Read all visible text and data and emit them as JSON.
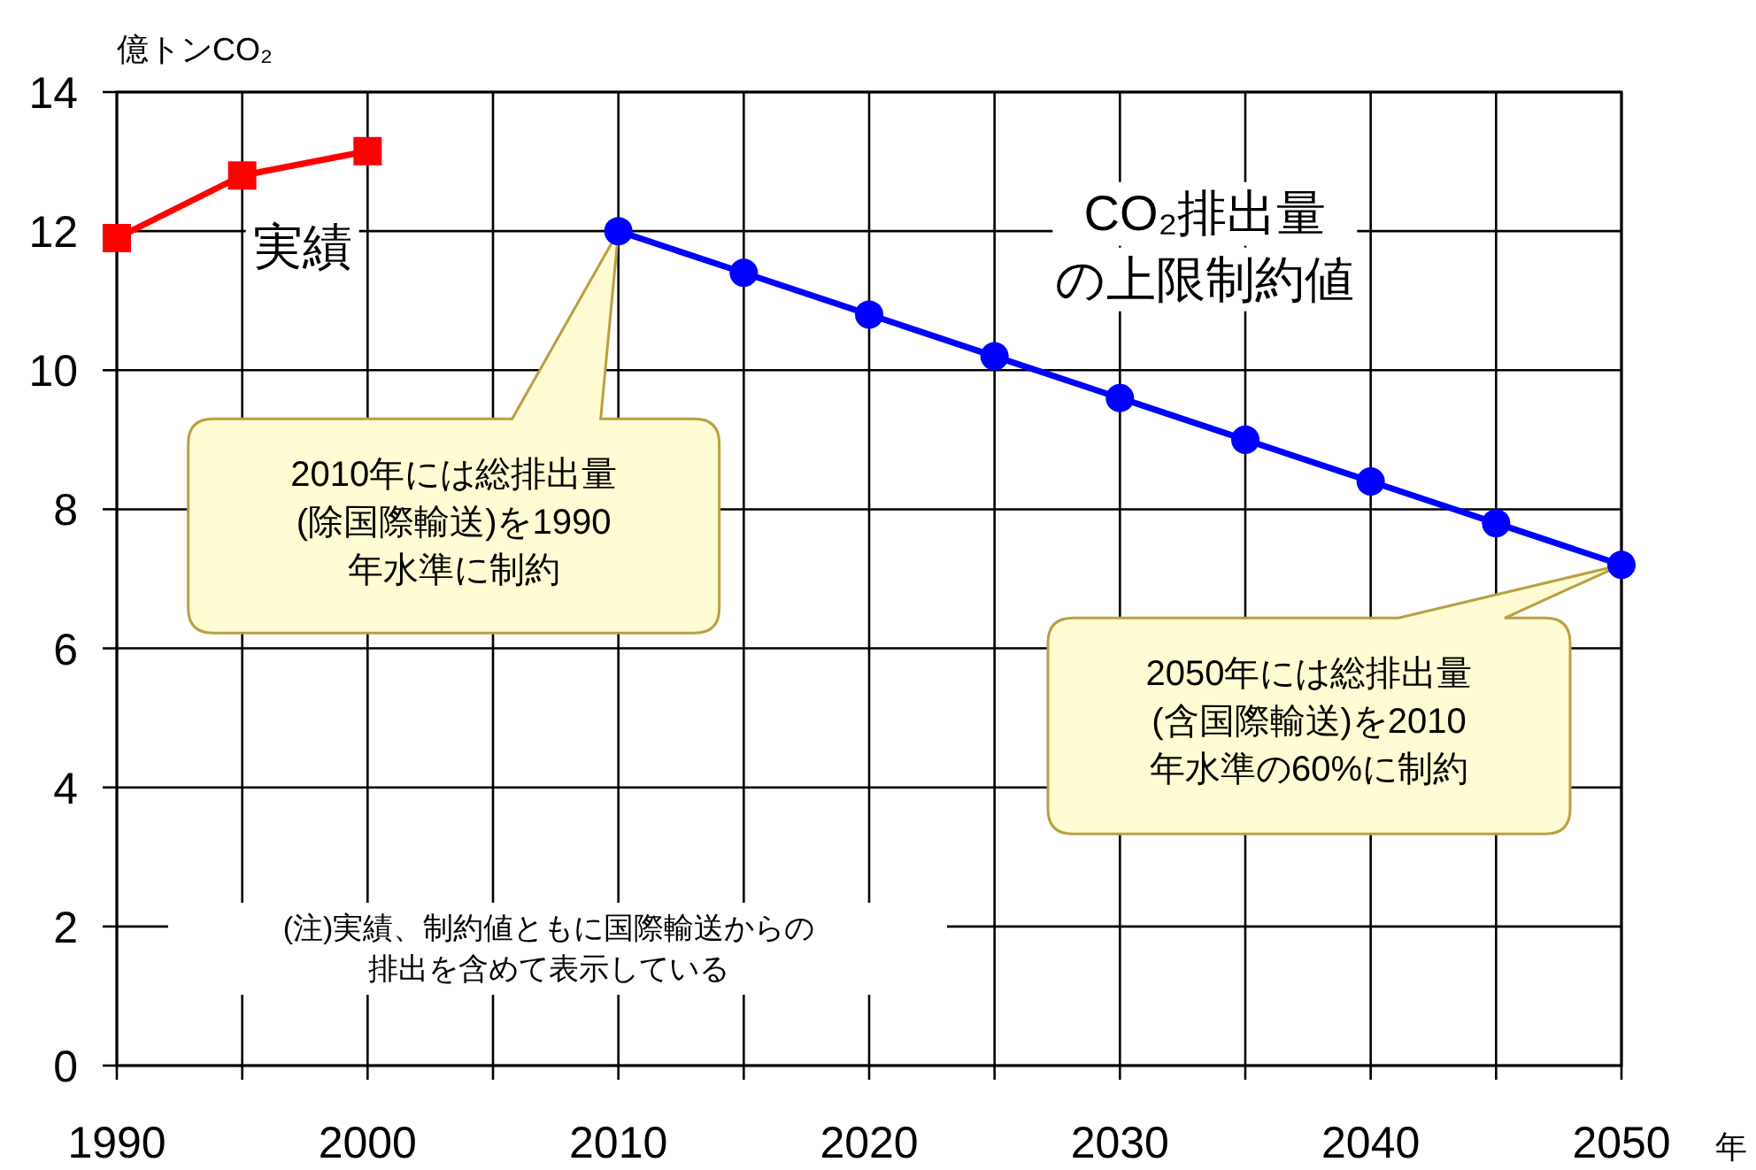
{
  "chart_data": {
    "type": "line",
    "ylabel": "億トンCO₂",
    "xlabel": "年",
    "xlim": [
      1990,
      2050
    ],
    "ylim": [
      0,
      14
    ],
    "xticks": [
      1990,
      {
        "value": 1995,
        "label": null
      },
      2000,
      {
        "value": 2005,
        "label": null
      },
      2010,
      {
        "value": 2015,
        "label": null
      },
      2020,
      {
        "value": 2025,
        "label": null
      },
      2030,
      {
        "value": 2035,
        "label": null
      },
      2040,
      {
        "value": 2045,
        "label": null
      },
      2050
    ],
    "yticks": [
      0,
      2,
      4,
      6,
      8,
      10,
      12,
      14
    ],
    "grid": true,
    "series": [
      {
        "name": "実績",
        "color": "#ff0000",
        "marker": "square",
        "x": [
          1990,
          1995,
          2000
        ],
        "values": [
          11.9,
          12.8,
          13.15
        ]
      },
      {
        "name": "CO₂排出量の上限制約値",
        "color": "#0000ff",
        "marker": "circle",
        "x": [
          2010,
          2015,
          2020,
          2025,
          2030,
          2035,
          2040,
          2045,
          2050
        ],
        "values": [
          12.0,
          11.4,
          10.8,
          10.2,
          9.6,
          9.0,
          8.4,
          7.8,
          7.2
        ]
      }
    ],
    "annotations": [
      "2010年には総排出量\n(除国際輸送)を1990\n年水準に制約",
      "2050年には総排出量\n(含国際輸送)を2010\n年水準の60%に制約",
      "(注)実績、制約値ともに国際輸送からの排出を含めて表示している"
    ]
  }
}
